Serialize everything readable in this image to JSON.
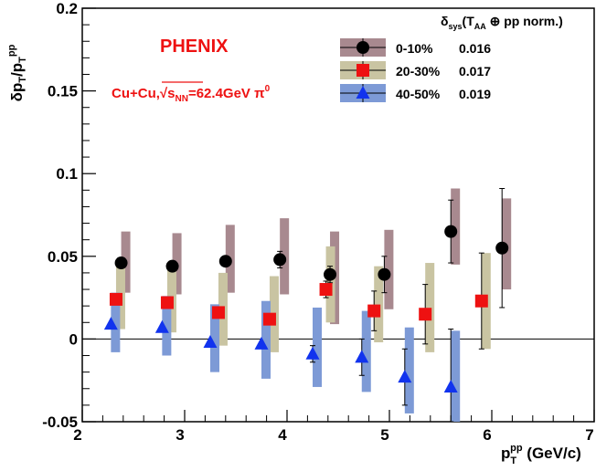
{
  "chart_data": {
    "type": "scatter",
    "title": "",
    "brand": "PHENIX",
    "system": {
      "prefix": "Cu+Cu,",
      "sqrt": "s",
      "sqrt_sub": "NN",
      "energy": "=62.4GeV π",
      "particle_sup": "0"
    },
    "ylabel": {
      "main": "δp",
      "sub1": "T",
      "slash": "/p",
      "sub2": "T",
      "sup": "pp"
    },
    "xlabel": {
      "main": "p",
      "sub": "T",
      "sup": "pp",
      "unit": " (GeV/c)"
    },
    "xlim": [
      2,
      7
    ],
    "ylim": [
      -0.05,
      0.2
    ],
    "xticks": [
      "2",
      "3",
      "4",
      "5",
      "6",
      "7"
    ],
    "xtick_values": [
      2,
      3,
      4,
      5,
      6,
      7
    ],
    "yticks": [
      "-0.05",
      "0",
      "0.05",
      "0.1",
      "0.15",
      "0.2"
    ],
    "ytick_values": [
      -0.05,
      0,
      0.05,
      0.1,
      0.15,
      0.2
    ],
    "grid": false,
    "legend_position": "top-right",
    "legend_header": {
      "delta": "δ",
      "sub": "sys",
      "text": "(T",
      "sub2": "AA",
      "rest": " ⊕ pp norm.)"
    },
    "series": [
      {
        "name": "0-10%",
        "sys_value": "0.016",
        "marker": "circle",
        "marker_color": "#000000",
        "band_color": "#a8898f",
        "points": [
          {
            "x": 2.38,
            "y": 0.046,
            "err": 0.0,
            "sys_lo": 0.028,
            "sys_hi": 0.065
          },
          {
            "x": 2.88,
            "y": 0.044,
            "err": 0.0,
            "sys_lo": 0.027,
            "sys_hi": 0.064
          },
          {
            "x": 3.4,
            "y": 0.047,
            "err": 0.0,
            "sys_lo": 0.028,
            "sys_hi": 0.069
          },
          {
            "x": 3.93,
            "y": 0.048,
            "err": 0.005,
            "sys_lo": 0.027,
            "sys_hi": 0.073
          },
          {
            "x": 4.42,
            "y": 0.039,
            "err": 0.005,
            "sys_lo": 0.009,
            "sys_hi": 0.065
          },
          {
            "x": 4.95,
            "y": 0.039,
            "err": 0.011,
            "sys_lo": 0.018,
            "sys_hi": 0.066
          },
          {
            "x": 5.6,
            "y": 0.065,
            "err": 0.019,
            "sys_lo": 0.045,
            "sys_hi": 0.091
          },
          {
            "x": 6.1,
            "y": 0.055,
            "err": 0.036,
            "sys_lo": 0.03,
            "sys_hi": 0.085
          }
        ]
      },
      {
        "name": "20-30%",
        "sys_value": "0.017",
        "marker": "square",
        "marker_color": "#ee1111",
        "band_color": "#c9c4a2",
        "points": [
          {
            "x": 2.33,
            "y": 0.024,
            "err": 0.0,
            "sys_lo": 0.006,
            "sys_hi": 0.044
          },
          {
            "x": 2.83,
            "y": 0.022,
            "err": 0.0,
            "sys_lo": 0.004,
            "sys_hi": 0.043
          },
          {
            "x": 3.33,
            "y": 0.016,
            "err": 0.0,
            "sys_lo": -0.004,
            "sys_hi": 0.04
          },
          {
            "x": 3.83,
            "y": 0.012,
            "err": 0.0,
            "sys_lo": -0.008,
            "sys_hi": 0.038
          },
          {
            "x": 4.38,
            "y": 0.03,
            "err": 0.005,
            "sys_lo": 0.01,
            "sys_hi": 0.056
          },
          {
            "x": 4.85,
            "y": 0.017,
            "err": 0.012,
            "sys_lo": -0.002,
            "sys_hi": 0.044
          },
          {
            "x": 5.35,
            "y": 0.015,
            "err": 0.018,
            "sys_lo": -0.008,
            "sys_hi": 0.046
          },
          {
            "x": 5.9,
            "y": 0.023,
            "err": 0.029,
            "sys_lo": -0.006,
            "sys_hi": 0.052
          }
        ]
      },
      {
        "name": "40-50%",
        "sys_value": "0.019",
        "marker": "triangle",
        "marker_color": "#1133ee",
        "band_color": "#7d9ad6",
        "points": [
          {
            "x": 2.28,
            "y": 0.009,
            "err": 0.0,
            "sys_lo": -0.008,
            "sys_hi": 0.028
          },
          {
            "x": 2.78,
            "y": 0.007,
            "err": 0.0,
            "sys_lo": -0.01,
            "sys_hi": 0.026
          },
          {
            "x": 3.25,
            "y": -0.002,
            "err": 0.0,
            "sys_lo": -0.02,
            "sys_hi": 0.021
          },
          {
            "x": 3.75,
            "y": -0.003,
            "err": 0.0,
            "sys_lo": -0.024,
            "sys_hi": 0.023
          },
          {
            "x": 4.25,
            "y": -0.009,
            "err": 0.005,
            "sys_lo": -0.029,
            "sys_hi": 0.019
          },
          {
            "x": 4.73,
            "y": -0.011,
            "err": 0.011,
            "sys_lo": -0.032,
            "sys_hi": 0.017
          },
          {
            "x": 5.15,
            "y": -0.023,
            "err": 0.017,
            "sys_lo": -0.045,
            "sys_hi": 0.007
          },
          {
            "x": 5.6,
            "y": -0.029,
            "err": 0.035,
            "sys_lo": -0.05,
            "sys_hi": 0.005
          }
        ]
      }
    ]
  }
}
